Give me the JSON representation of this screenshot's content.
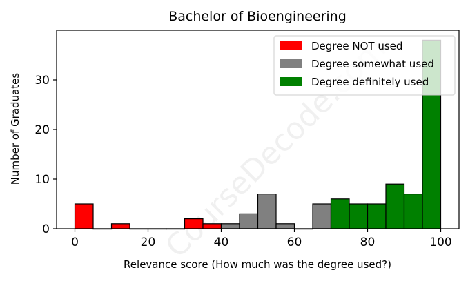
{
  "chart_data": {
    "type": "bar",
    "title": "Bachelor of Bioengineering",
    "xlabel": "Relevance score (How much was the degree used?)",
    "ylabel": "Number of Graduates",
    "xlim": [
      -5,
      105
    ],
    "ylim": [
      0,
      40
    ],
    "x_ticks": [
      0,
      20,
      40,
      60,
      80,
      100
    ],
    "y_ticks": [
      0,
      10,
      20,
      30
    ],
    "bin_width": 5,
    "watermark": "CourseDecode.com",
    "legend_position": "top-right",
    "series": [
      {
        "name": "Degree NOT used",
        "color": "#ff0000",
        "bins": [
          {
            "start": 0,
            "count": 5
          },
          {
            "start": 5,
            "count": 0
          },
          {
            "start": 10,
            "count": 1
          },
          {
            "start": 15,
            "count": 0
          },
          {
            "start": 20,
            "count": 0
          },
          {
            "start": 25,
            "count": 0
          },
          {
            "start": 30,
            "count": 2
          },
          {
            "start": 35,
            "count": 1
          }
        ]
      },
      {
        "name": "Degree somewhat used",
        "color": "#808080",
        "bins": [
          {
            "start": 40,
            "count": 1
          },
          {
            "start": 45,
            "count": 3
          },
          {
            "start": 50,
            "count": 7
          },
          {
            "start": 55,
            "count": 1
          },
          {
            "start": 60,
            "count": 0
          },
          {
            "start": 65,
            "count": 5
          }
        ]
      },
      {
        "name": "Degree definitely used",
        "color": "#008000",
        "bins": [
          {
            "start": 70,
            "count": 6
          },
          {
            "start": 75,
            "count": 5
          },
          {
            "start": 80,
            "count": 5
          },
          {
            "start": 85,
            "count": 9
          },
          {
            "start": 90,
            "count": 7
          },
          {
            "start": 95,
            "count": 38
          }
        ]
      }
    ]
  }
}
